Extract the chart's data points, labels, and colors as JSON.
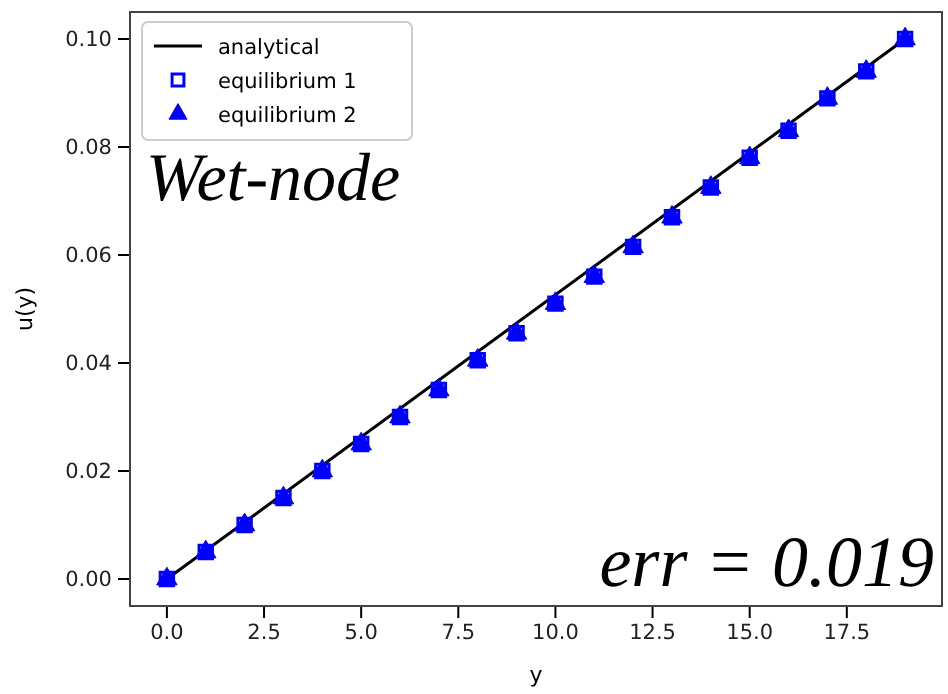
{
  "chart_data": {
    "type": "line",
    "xlabel": "y",
    "ylabel": "u(y)",
    "xlim": [
      -0.95,
      19.95
    ],
    "xticks": [
      {
        "value": 0,
        "label": "0.0"
      },
      {
        "value": 2.5,
        "label": "2.5"
      },
      {
        "value": 5,
        "label": "5.0"
      },
      {
        "value": 7.5,
        "label": "7.5"
      },
      {
        "value": 10,
        "label": "10.0"
      },
      {
        "value": 12.5,
        "label": "12.5"
      },
      {
        "value": 15,
        "label": "15.0"
      },
      {
        "value": 17.5,
        "label": "17.5"
      }
    ],
    "ylim": [
      -0.005,
      0.105
    ],
    "yticks": [
      {
        "value": 0,
        "label": "0.00"
      },
      {
        "value": 0.02,
        "label": "0.02"
      },
      {
        "value": 0.04,
        "label": "0.04"
      },
      {
        "value": 0.06,
        "label": "0.06"
      },
      {
        "value": 0.08,
        "label": "0.08"
      },
      {
        "value": 0.1,
        "label": "0.10"
      }
    ],
    "grid": false,
    "legend": "top left",
    "annotations": [
      "Wet-node",
      "err = 0.019"
    ],
    "series": [
      {
        "name": "analytical",
        "color": "#000000",
        "marker": "none",
        "line_style": "solid",
        "x": [
          0,
          19
        ],
        "values": [
          0,
          0.1
        ]
      },
      {
        "name": "equilibrium 1",
        "type": "scatter",
        "color": "#0000ff",
        "marker": "square",
        "x": [
          0,
          1,
          2,
          3,
          4,
          5,
          6,
          7,
          8,
          9,
          10,
          11,
          12,
          13,
          14,
          15,
          16,
          17,
          18,
          19
        ],
        "values": [
          0,
          0.005,
          0.01,
          0.015,
          0.02,
          0.025,
          0.03,
          0.035,
          0.0405,
          0.0455,
          0.051,
          0.056,
          0.0615,
          0.067,
          0.0725,
          0.078,
          0.083,
          0.089,
          0.094,
          0.1
        ]
      },
      {
        "name": "equilibrium 2",
        "type": "scatter",
        "color": "#0000ff",
        "marker": "triangle",
        "x": [
          0,
          1,
          2,
          3,
          4,
          5,
          6,
          7,
          8,
          9,
          10,
          11,
          12,
          13,
          14,
          15,
          16,
          17,
          18,
          19
        ],
        "values": [
          0,
          0.005,
          0.01,
          0.015,
          0.02,
          0.025,
          0.03,
          0.035,
          0.0405,
          0.0455,
          0.051,
          0.056,
          0.0615,
          0.067,
          0.0725,
          0.078,
          0.083,
          0.089,
          0.094,
          0.1
        ]
      }
    ]
  }
}
